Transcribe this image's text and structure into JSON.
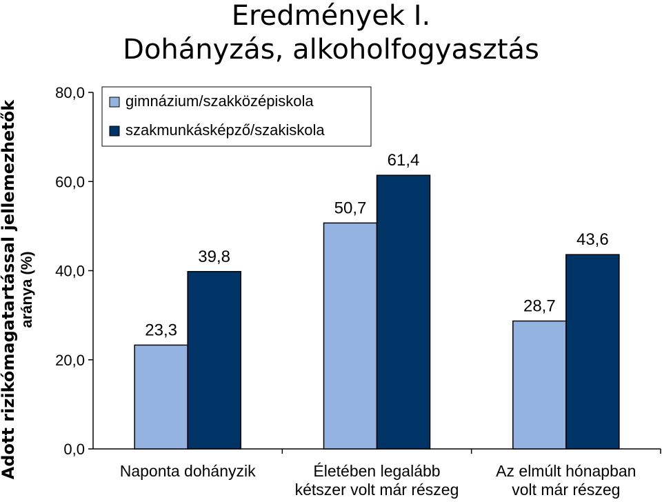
{
  "title_line1": "Eredmények I.",
  "title_line2": "Dohányzás, alkoholfogyasztás",
  "chart_data": {
    "type": "bar",
    "ylabel_line1": "Adott rizikómagatartással jellemezhetők",
    "ylabel_line2": "aránya (%)",
    "ylim": [
      0,
      80
    ],
    "yticks": [
      "0,0",
      "20,0",
      "40,0",
      "60,0",
      "80,0"
    ],
    "categories": [
      [
        "Naponta dohányzik"
      ],
      [
        "Életében legalább",
        "kétszer volt már részeg"
      ],
      [
        "Az elmúlt hónapban",
        "volt már részeg"
      ]
    ],
    "series": [
      {
        "name": "gimnázium/szakközépiskola",
        "color": "#95b3e0",
        "values": [
          23.3,
          50.7,
          28.7
        ],
        "labels": [
          "23,3",
          "50,7",
          "28,7"
        ]
      },
      {
        "name": "szakmunkásképző/szakiskola",
        "color": "#003366",
        "values": [
          39.8,
          61.4,
          43.6
        ],
        "labels": [
          "39,8",
          "61,4",
          "43,6"
        ]
      }
    ],
    "legend_position": "top-left",
    "grid": false
  }
}
